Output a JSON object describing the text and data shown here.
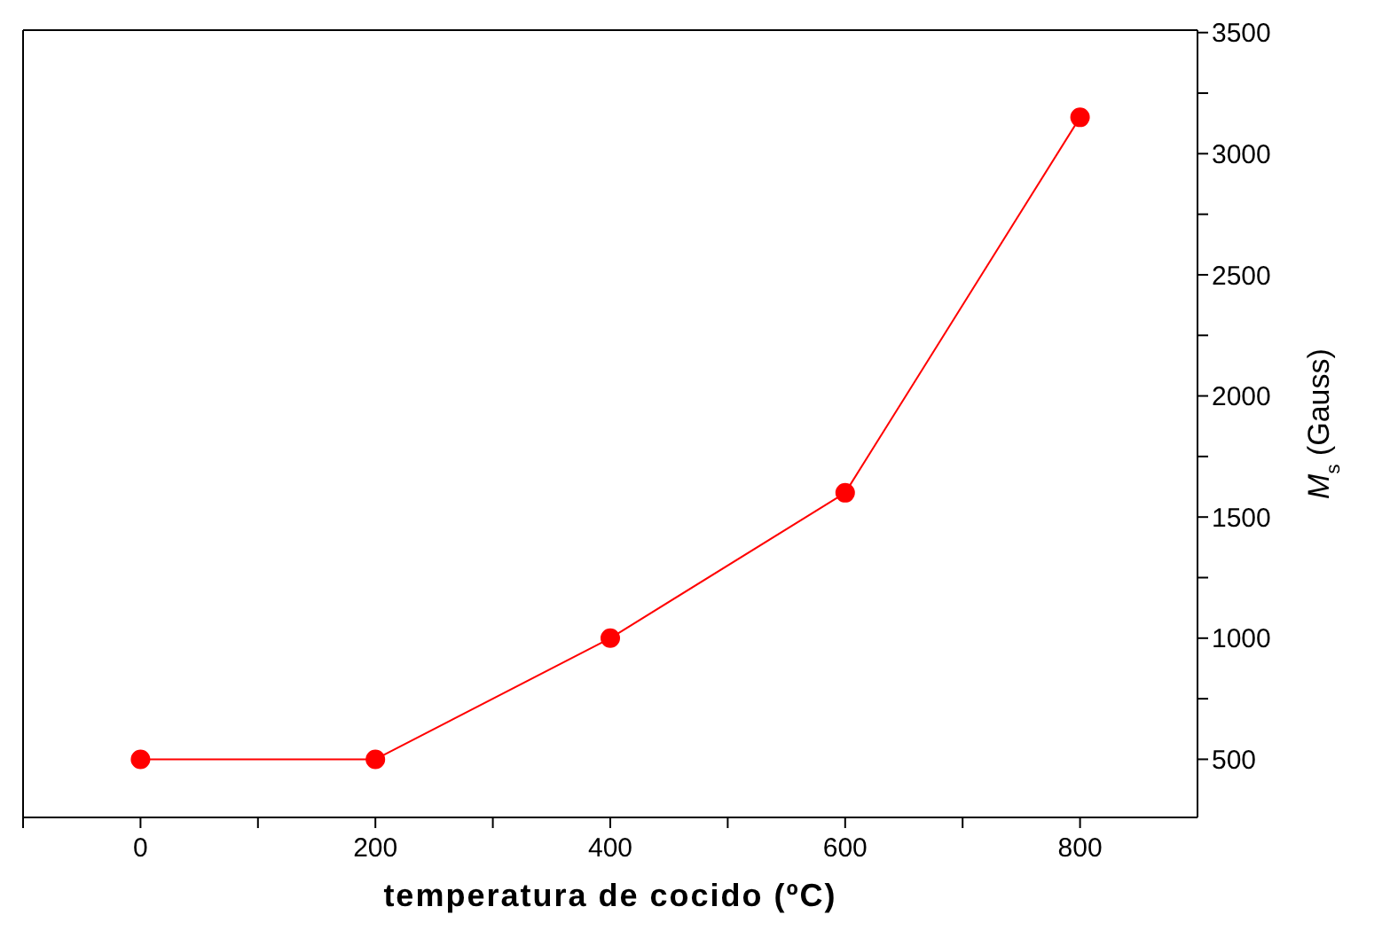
{
  "chart_data": {
    "type": "line",
    "xlabel": "temperatura de cocido (ºC)",
    "ylabel": "M$_{s}$ (Gauss)",
    "x": [
      0,
      200,
      400,
      600,
      800
    ],
    "series": [
      {
        "color": "#ff0000",
        "values": [
          500,
          500,
          1000,
          1600,
          3150
        ]
      }
    ],
    "xlim": [
      -100,
      900
    ],
    "xticks": [
      {
        "value": -100,
        "label": null
      },
      0,
      {
        "value": 100,
        "label": null
      },
      200,
      {
        "value": 300,
        "label": null
      },
      400,
      {
        "value": 500,
        "label": null
      },
      600,
      {
        "value": 700,
        "label": null
      },
      800
    ],
    "ylim": [
      260,
      3510
    ],
    "yticks": [
      500,
      {
        "value": 750,
        "label": null
      },
      1000,
      {
        "value": 1250,
        "label": null
      },
      1500,
      {
        "value": 1750,
        "label": null
      },
      2000,
      {
        "value": 2250,
        "label": null
      },
      2500,
      {
        "value": 2750,
        "label": null
      },
      3000,
      {
        "value": 3250,
        "label": null
      },
      3500
    ],
    "marker": "circle",
    "line_style": "solid",
    "grid": false
  }
}
